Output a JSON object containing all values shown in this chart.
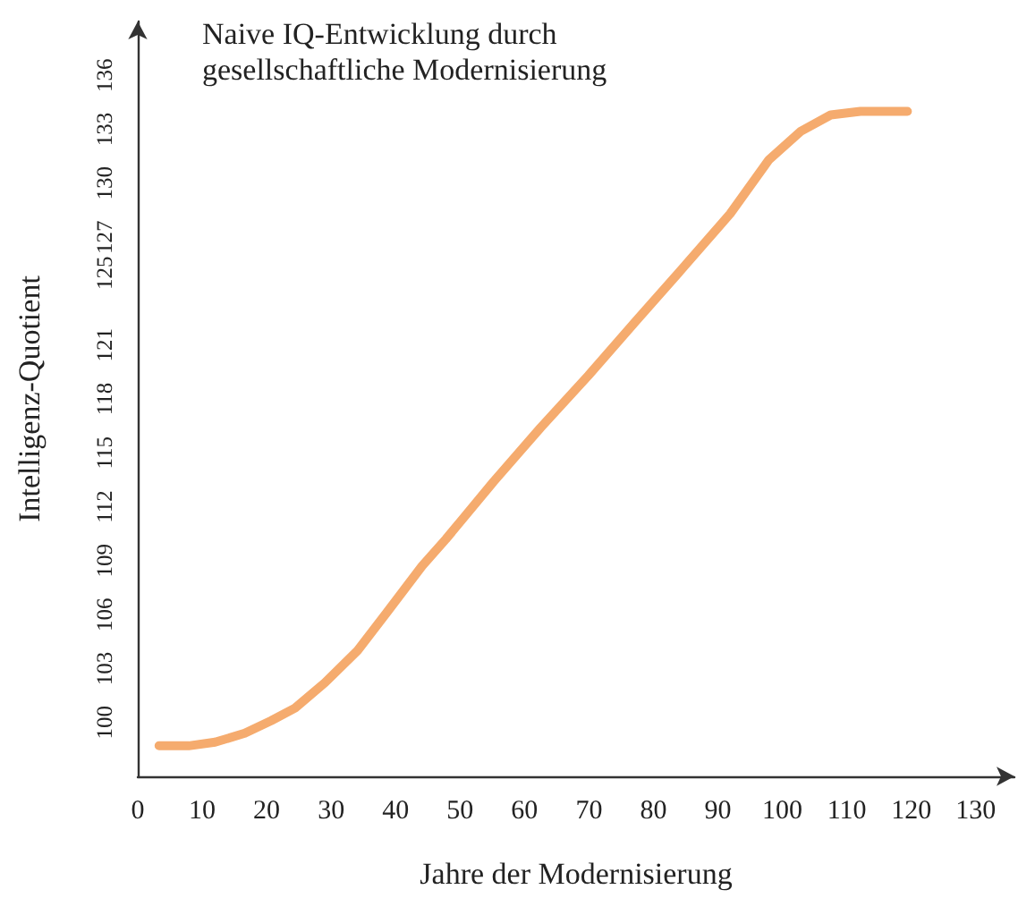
{
  "chart_data": {
    "type": "line",
    "title": "Naive IQ-Entwicklung durch gesellschaftliche Modernisierung",
    "xlabel": "Jahre der Modernisierung",
    "ylabel": "Intelligenz-Quotient",
    "x": [
      3.3,
      7.9,
      12.0,
      16.6,
      20.7,
      24.4,
      29.0,
      34.1,
      38.6,
      44.1,
      47.8,
      55.2,
      62.5,
      69.9,
      77.2,
      84.6,
      91.9,
      97.9,
      102.9,
      107.5,
      112.1,
      119.4
    ],
    "series": [
      {
        "color": "#f5ab6e",
        "values": [
          98.7,
          98.7,
          98.9,
          99.4,
          100.1,
          100.8,
          102.2,
          104.0,
          106.1,
          108.7,
          110.2,
          113.4,
          116.4,
          119.3,
          122.3,
          125.3,
          128.3,
          131.3,
          132.9,
          133.8,
          134.0,
          134.0
        ]
      }
    ],
    "xlim": [
      0,
      136
    ],
    "xticks": [
      0,
      10,
      20,
      30,
      40,
      50,
      60,
      70,
      80,
      90,
      100,
      110,
      120,
      130
    ],
    "ylim": [
      97,
      139
    ],
    "yticks": [
      100,
      103,
      106,
      109,
      112,
      115,
      118,
      121,
      125,
      127,
      130,
      133,
      136
    ],
    "grid": false,
    "marker": "none",
    "line_style": "solid"
  }
}
